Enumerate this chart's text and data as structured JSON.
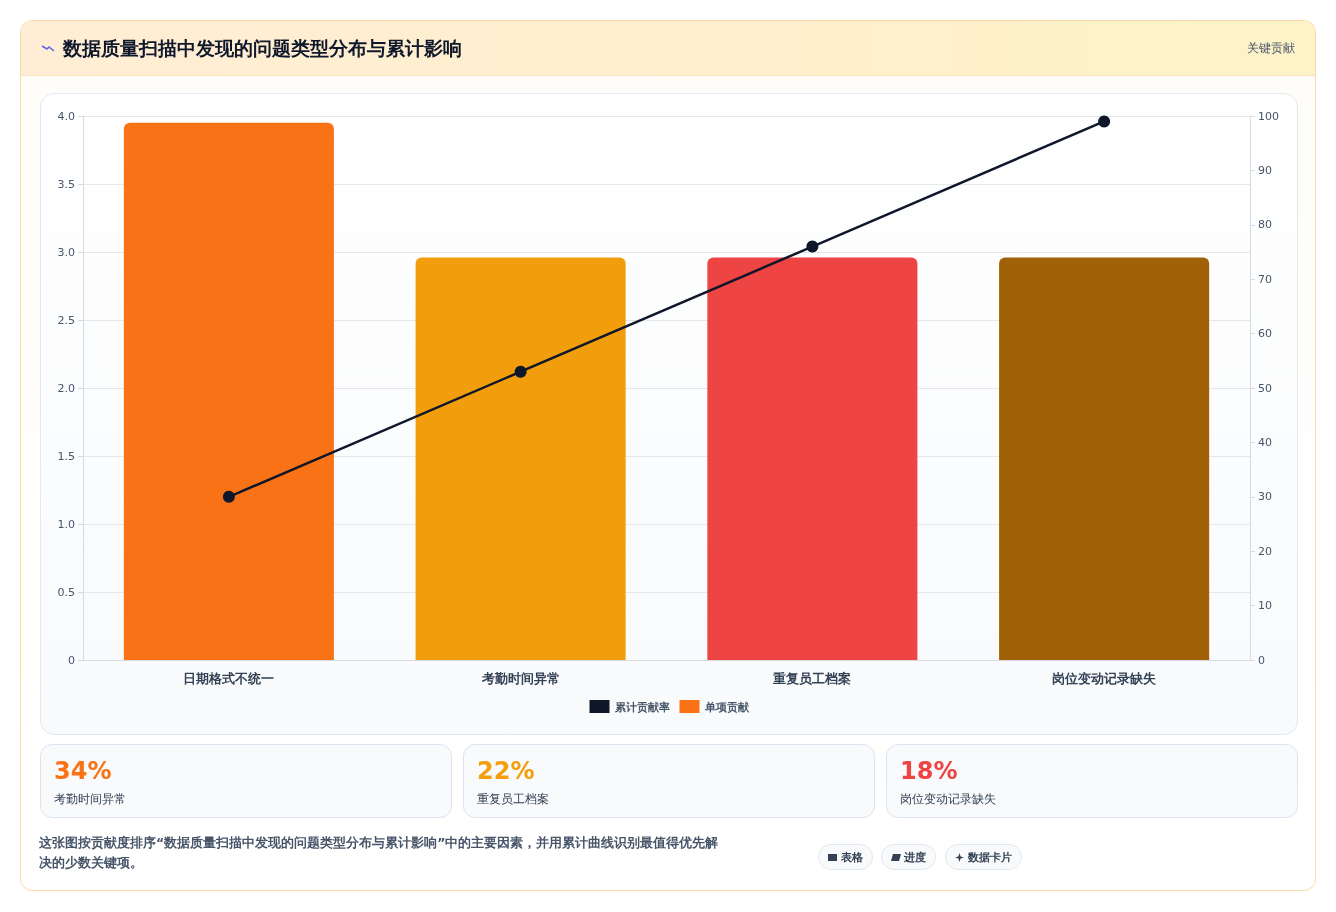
{
  "chart_data": [
    {
      "type": "bar",
      "title": "数据质量扫描中发现的问题类型分布与累计影响",
      "categories": [
        "日期格式不统一",
        "考勤时间异常",
        "重复员工档案",
        "岗位变动记录缺失"
      ],
      "series": [
        {
          "name": "单项贡献",
          "color": "#f97316",
          "colors": [
            "#f97316",
            "#f29e0c",
            "#ef4444",
            "#a16207"
          ],
          "values": [
            3.95,
            2.96,
            2.96,
            2.96
          ]
        },
        {
          "name": "累计贡献率",
          "type": "line",
          "axis": "y2",
          "color": "#0f172a",
          "values": [
            30,
            53,
            76,
            99
          ]
        }
      ],
      "ylim": [
        0,
        4
      ],
      "yticks": [
        {
          "value": 0,
          "label": "0"
        },
        0.5,
        {
          "value": 1,
          "label": "1.0"
        },
        1.5,
        {
          "value": 2,
          "label": "2.0"
        },
        2.5,
        {
          "value": 3,
          "label": "3.0"
        },
        3.5,
        {
          "value": 4,
          "label": "4.0"
        }
      ],
      "y2lim": [
        0,
        100
      ],
      "y2ticks": [
        0,
        10,
        20,
        30,
        40,
        50,
        60,
        70,
        80,
        90,
        100
      ],
      "grid": "y",
      "legend": "bottom",
      "marker": "circle",
      "line_style": "solid",
      "annotations": [
        "关键贡献",
        "这张图按贡献度排序“数据质量扫描中发现的问题类型分布与累计影响”中的主要因素，并用累计曲线识别最值得优先解决的少数关键项。"
      ]
    },
    {
      "type": "other",
      "annotations": [
        "34%",
        "考勤时间异常",
        "22%",
        "重复员工档案",
        "18%",
        "岗位变动记录缺失",
        "表格",
        "进度",
        "数据卡片"
      ]
    }
  ]
}
